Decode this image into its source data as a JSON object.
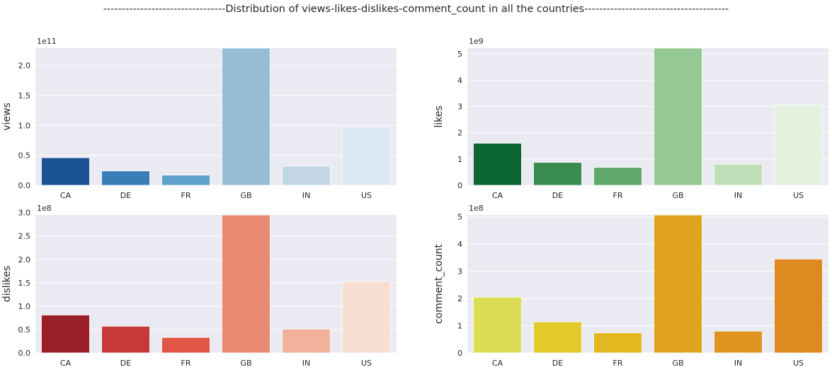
{
  "suptitle": "---------------------------------Distribution of views-likes-dislikes-comment_count in all the countries---------------------------------------",
  "chart_data": [
    {
      "type": "bar",
      "ylabel": "views",
      "offset_label": "1e11",
      "categories": [
        "CA",
        "DE",
        "FR",
        "GB",
        "IN",
        "US"
      ],
      "values": [
        46000000000.0,
        24000000000.0,
        17000000000.0,
        229000000000.0,
        32000000000.0,
        97000000000.0
      ],
      "scale": 100000000000.0,
      "ylim": [
        0,
        229000000000.0
      ],
      "yticks": [
        0,
        0.5,
        1.0,
        1.5,
        2.0
      ],
      "ytick_labels": [
        "0.0",
        "0.5",
        "1.0",
        "1.5",
        "2.0"
      ],
      "colors": [
        "#1b5395",
        "#3a7eb8",
        "#5fa2cb",
        "#96bdd4",
        "#c2d6e6",
        "#dce8f4"
      ],
      "grid": true
    },
    {
      "type": "bar",
      "ylabel": "likes",
      "offset_label": "1e9",
      "categories": [
        "CA",
        "DE",
        "FR",
        "GB",
        "IN",
        "US"
      ],
      "values": [
        1600000000.0,
        870000000.0,
        680000000.0,
        5220000000.0,
        800000000.0,
        3050000000.0
      ],
      "scale": 1000000000.0,
      "ylim": [
        0,
        5220000000.0
      ],
      "yticks": [
        0,
        1,
        2,
        3,
        4,
        5
      ],
      "ytick_labels": [
        "0",
        "1",
        "2",
        "3",
        "4",
        "5"
      ],
      "colors": [
        "#0c6632",
        "#388c50",
        "#5ea86b",
        "#95c993",
        "#c0deb8",
        "#e3f1de"
      ],
      "grid": true
    },
    {
      "type": "bar",
      "ylabel": "dislikes",
      "offset_label": "1e8",
      "categories": [
        "CA",
        "DE",
        "FR",
        "GB",
        "IN",
        "US"
      ],
      "values": [
        81000000.0,
        57000000.0,
        33000000.0,
        295000000.0,
        51000000.0,
        153000000.0
      ],
      "scale": 100000000.0,
      "ylim": [
        0,
        295000000.0
      ],
      "yticks": [
        0,
        0.5,
        1.0,
        1.5,
        2.0,
        2.5,
        3.0
      ],
      "ytick_labels": [
        "0.0",
        "0.5",
        "1.0",
        "1.5",
        "2.0",
        "2.5",
        "3.0"
      ],
      "colors": [
        "#9a1f26",
        "#c5393a",
        "#e05543",
        "#e98a71",
        "#f1b19b",
        "#f8ddd3"
      ],
      "grid": true
    },
    {
      "type": "bar",
      "ylabel": "comment_count",
      "offset_label": "1e8",
      "categories": [
        "CA",
        "DE",
        "FR",
        "GB",
        "IN",
        "US"
      ],
      "values": [
        205000000.0,
        114000000.0,
        74000000.0,
        507000000.0,
        80000000.0,
        345000000.0
      ],
      "scale": 100000000.0,
      "ylim": [
        0,
        507000000.0
      ],
      "yticks": [
        0,
        1,
        2,
        3,
        4,
        5
      ],
      "ytick_labels": [
        "0",
        "1",
        "2",
        "3",
        "4",
        "5"
      ],
      "colors": [
        "#dcdc55",
        "#e3c92c",
        "#e4b821",
        "#dfa31f",
        "#df921f",
        "#df8a20"
      ],
      "grid": true
    }
  ]
}
